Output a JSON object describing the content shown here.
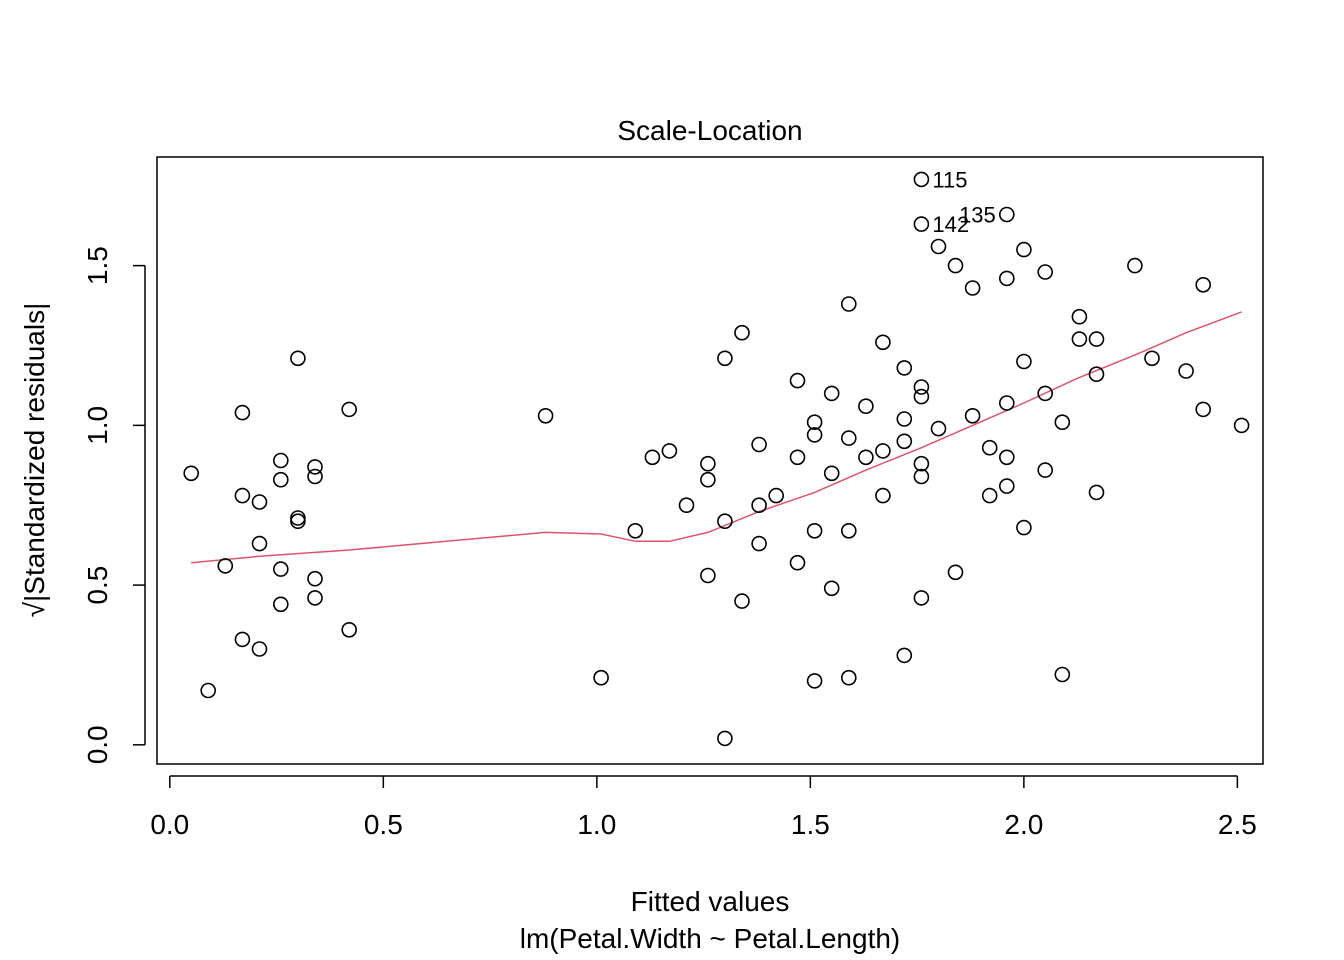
{
  "chart_data": {
    "type": "scatter",
    "title": "Scale-Location",
    "xlabel": "Fitted values",
    "subtitle": "lm(Petal.Width ~ Petal.Length)",
    "ylabel": "√|Standardized residuals|",
    "xlim": [
      -0.03,
      2.56
    ],
    "ylim": [
      -0.06,
      1.84
    ],
    "x_ticks": [
      0.0,
      0.5,
      1.0,
      1.5,
      2.0,
      2.5
    ],
    "x_tick_labels": [
      "0.0",
      "0.5",
      "1.0",
      "1.5",
      "2.0",
      "2.5"
    ],
    "y_ticks": [
      0.0,
      0.5,
      1.0,
      1.5
    ],
    "y_tick_labels": [
      "0.0",
      "0.5",
      "1.0",
      "1.5"
    ],
    "point_color": "#000000",
    "smooth_color": "#DF536B",
    "points": [
      [
        0.05,
        0.85
      ],
      [
        0.09,
        0.17
      ],
      [
        0.13,
        0.56
      ],
      [
        0.17,
        0.33
      ],
      [
        0.17,
        0.78
      ],
      [
        0.17,
        1.04
      ],
      [
        0.21,
        0.3
      ],
      [
        0.21,
        0.63
      ],
      [
        0.21,
        0.76
      ],
      [
        0.26,
        0.44
      ],
      [
        0.26,
        0.55
      ],
      [
        0.26,
        0.83
      ],
      [
        0.26,
        0.89
      ],
      [
        0.3,
        0.7
      ],
      [
        0.3,
        0.71
      ],
      [
        0.3,
        1.21
      ],
      [
        0.34,
        0.46
      ],
      [
        0.34,
        0.52
      ],
      [
        0.34,
        0.84
      ],
      [
        0.34,
        0.87
      ],
      [
        0.42,
        0.36
      ],
      [
        0.42,
        1.05
      ],
      [
        0.88,
        1.03
      ],
      [
        1.01,
        0.21
      ],
      [
        1.09,
        0.67
      ],
      [
        1.13,
        0.9
      ],
      [
        1.17,
        0.92
      ],
      [
        1.21,
        0.75
      ],
      [
        1.26,
        0.53
      ],
      [
        1.26,
        0.83
      ],
      [
        1.26,
        0.88
      ],
      [
        1.3,
        0.02
      ],
      [
        1.3,
        0.7
      ],
      [
        1.3,
        1.21
      ],
      [
        1.34,
        0.45
      ],
      [
        1.34,
        1.29
      ],
      [
        1.38,
        0.63
      ],
      [
        1.38,
        0.75
      ],
      [
        1.38,
        0.94
      ],
      [
        1.42,
        0.78
      ],
      [
        1.47,
        0.57
      ],
      [
        1.47,
        0.9
      ],
      [
        1.47,
        1.14
      ],
      [
        1.51,
        0.2
      ],
      [
        1.51,
        0.67
      ],
      [
        1.51,
        0.97
      ],
      [
        1.51,
        1.01
      ],
      [
        1.55,
        0.49
      ],
      [
        1.55,
        0.85
      ],
      [
        1.55,
        1.1
      ],
      [
        1.59,
        0.21
      ],
      [
        1.59,
        0.67
      ],
      [
        1.59,
        0.96
      ],
      [
        1.59,
        1.38
      ],
      [
        1.63,
        0.9
      ],
      [
        1.63,
        1.06
      ],
      [
        1.67,
        0.78
      ],
      [
        1.67,
        0.92
      ],
      [
        1.67,
        1.26
      ],
      [
        1.72,
        0.28
      ],
      [
        1.72,
        0.95
      ],
      [
        1.72,
        1.02
      ],
      [
        1.72,
        1.18
      ],
      [
        1.76,
        0.46
      ],
      [
        1.76,
        0.84
      ],
      [
        1.76,
        0.88
      ],
      [
        1.76,
        1.09
      ],
      [
        1.76,
        1.12
      ],
      [
        1.76,
        1.63
      ],
      [
        1.76,
        1.77
      ],
      [
        1.8,
        0.99
      ],
      [
        1.8,
        1.56
      ],
      [
        1.84,
        0.54
      ],
      [
        1.84,
        1.5
      ],
      [
        1.88,
        1.03
      ],
      [
        1.88,
        1.43
      ],
      [
        1.92,
        0.78
      ],
      [
        1.92,
        0.93
      ],
      [
        1.96,
        0.81
      ],
      [
        1.96,
        0.9
      ],
      [
        1.96,
        1.07
      ],
      [
        1.96,
        1.46
      ],
      [
        1.96,
        1.66
      ],
      [
        2.0,
        0.68
      ],
      [
        2.0,
        1.2
      ],
      [
        2.0,
        1.55
      ],
      [
        2.05,
        0.86
      ],
      [
        2.05,
        1.1
      ],
      [
        2.05,
        1.48
      ],
      [
        2.09,
        0.22
      ],
      [
        2.09,
        1.01
      ],
      [
        2.13,
        1.27
      ],
      [
        2.13,
        1.34
      ],
      [
        2.17,
        0.79
      ],
      [
        2.17,
        1.16
      ],
      [
        2.17,
        1.27
      ],
      [
        2.26,
        1.5
      ],
      [
        2.3,
        1.21
      ],
      [
        2.38,
        1.17
      ],
      [
        2.42,
        1.05
      ],
      [
        2.42,
        1.44
      ],
      [
        2.51,
        1.0
      ]
    ],
    "labeled_points": [
      {
        "label": "115",
        "x": 1.76,
        "y": 1.77,
        "side": "right"
      },
      {
        "label": "142",
        "x": 1.76,
        "y": 1.63,
        "side": "right"
      },
      {
        "label": "135",
        "x": 1.96,
        "y": 1.66,
        "side": "left"
      }
    ],
    "smooth_line": [
      [
        0.05,
        0.57
      ],
      [
        0.21,
        0.59
      ],
      [
        0.42,
        0.61
      ],
      [
        0.88,
        0.665
      ],
      [
        1.01,
        0.66
      ],
      [
        1.09,
        0.637
      ],
      [
        1.17,
        0.637
      ],
      [
        1.26,
        0.665
      ],
      [
        1.38,
        0.73
      ],
      [
        1.51,
        0.79
      ],
      [
        1.63,
        0.86
      ],
      [
        1.76,
        0.93
      ],
      [
        1.88,
        1.0
      ],
      [
        2.0,
        1.07
      ],
      [
        2.13,
        1.15
      ],
      [
        2.26,
        1.22
      ],
      [
        2.38,
        1.29
      ],
      [
        2.51,
        1.355
      ]
    ]
  }
}
